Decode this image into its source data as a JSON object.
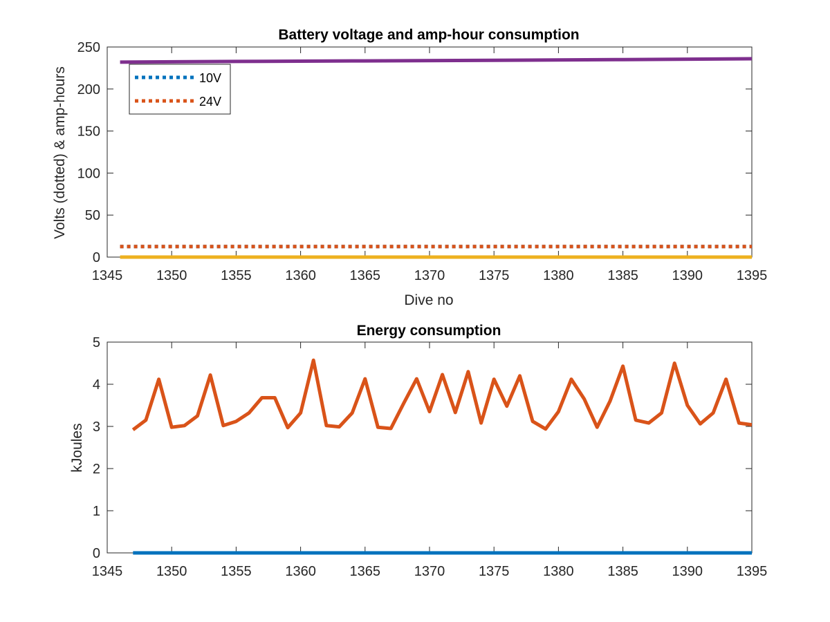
{
  "chart_data": [
    {
      "type": "line",
      "title": "Battery voltage and amp-hour consumption",
      "xlabel": "Dive no",
      "ylabel": "Volts (dotted) & amp-hours",
      "xlim": [
        1345,
        1395
      ],
      "ylim": [
        0,
        250
      ],
      "xticks": [
        1345,
        1350,
        1355,
        1360,
        1365,
        1370,
        1375,
        1380,
        1385,
        1390,
        1395
      ],
      "yticks": [
        0,
        50,
        100,
        150,
        200,
        250
      ],
      "legend_position": "top-left",
      "series": [
        {
          "name": "10V",
          "style": "dotted",
          "color": "#0072BD",
          "x": [
            1346,
            1395
          ],
          "y": [
            12.5,
            12.5
          ]
        },
        {
          "name": "24V",
          "style": "dotted",
          "color": "#D95319",
          "x": [
            1346,
            1395
          ],
          "y": [
            12.5,
            12.5
          ]
        },
        {
          "style": "solid",
          "color": "#EDB120",
          "x": [
            1346,
            1395
          ],
          "y": [
            0,
            0
          ]
        },
        {
          "style": "solid",
          "color": "#7E2F8E",
          "x": [
            1346,
            1355,
            1365,
            1375,
            1385,
            1395
          ],
          "y": [
            232,
            232.8,
            233.5,
            234.2,
            235,
            236
          ]
        }
      ]
    },
    {
      "type": "line",
      "title": "Energy consumption",
      "xlabel": "",
      "ylabel": "kJoules",
      "xlim": [
        1345,
        1395
      ],
      "ylim": [
        0,
        5
      ],
      "xticks": [
        1345,
        1350,
        1355,
        1360,
        1365,
        1370,
        1375,
        1380,
        1385,
        1390,
        1395
      ],
      "yticks": [
        0,
        1,
        2,
        3,
        4,
        5
      ],
      "series": [
        {
          "style": "solid",
          "color": "#D95319",
          "x": [
            1347,
            1348,
            1349,
            1350,
            1351,
            1352,
            1353,
            1354,
            1355,
            1356,
            1357,
            1358,
            1359,
            1360,
            1361,
            1362,
            1363,
            1364,
            1365,
            1366,
            1367,
            1368,
            1369,
            1370,
            1371,
            1372,
            1373,
            1374,
            1375,
            1376,
            1377,
            1378,
            1379,
            1380,
            1381,
            1382,
            1383,
            1384,
            1385,
            1386,
            1387,
            1388,
            1389,
            1390,
            1391,
            1392,
            1393,
            1394,
            1395
          ],
          "y": [
            2.92,
            3.15,
            4.12,
            2.98,
            3.02,
            3.25,
            4.22,
            3.02,
            3.12,
            3.32,
            3.68,
            3.68,
            2.97,
            3.32,
            4.57,
            3.02,
            2.99,
            3.32,
            4.13,
            2.98,
            2.95,
            3.55,
            4.13,
            3.35,
            4.23,
            3.33,
            4.3,
            3.08,
            4.12,
            3.48,
            4.2,
            3.12,
            2.94,
            3.35,
            4.12,
            3.65,
            2.98,
            3.6,
            4.43,
            3.15,
            3.08,
            3.32,
            4.5,
            3.5,
            3.06,
            3.32,
            4.12,
            3.08,
            3.04
          ]
        },
        {
          "style": "solid",
          "color": "#0072BD",
          "x": [
            1347,
            1395
          ],
          "y": [
            0,
            0
          ]
        }
      ]
    }
  ]
}
